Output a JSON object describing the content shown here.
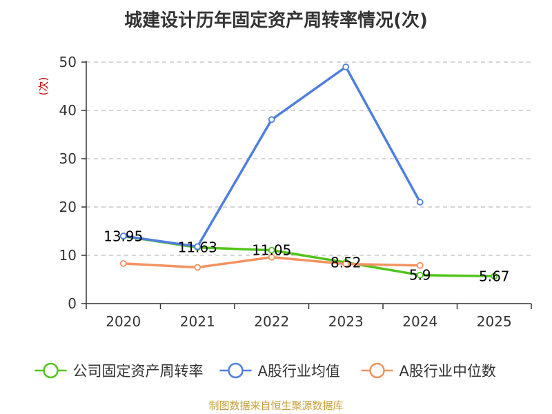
{
  "chart_data": {
    "type": "line",
    "title": "城建设计历年固定资产周转率情况(次)",
    "ylabel": "(次)",
    "xlabel": "",
    "categories": [
      "2020",
      "2021",
      "2022",
      "2023",
      "2024",
      "2025"
    ],
    "ylim": [
      0,
      50
    ],
    "yticks": [
      0,
      10,
      20,
      30,
      40,
      50
    ],
    "grid": true,
    "legend_position": "bottom",
    "series": [
      {
        "name": "公司固定资产周转率",
        "color": "#52c41a",
        "values": [
          13.95,
          11.63,
          11.05,
          8.52,
          5.9,
          5.67
        ],
        "labels": [
          "13.95",
          "11.63",
          "11.05",
          "8.52",
          "5.9",
          "5.67"
        ]
      },
      {
        "name": "A股行业均值",
        "color": "#4e7fde",
        "values": [
          14.0,
          11.8,
          38.1,
          49.0,
          21.0,
          null
        ]
      },
      {
        "name": "A股行业中位数",
        "color": "#f4925f",
        "values": [
          8.3,
          7.5,
          9.6,
          8.2,
          7.9,
          null
        ]
      }
    ]
  },
  "source_text": "制图数据来自恒生聚源数据库",
  "colors": {
    "ylabel": "#cc0000",
    "source": "#c8a03c",
    "axis": "#333333",
    "grid": "#c8c8c8"
  }
}
